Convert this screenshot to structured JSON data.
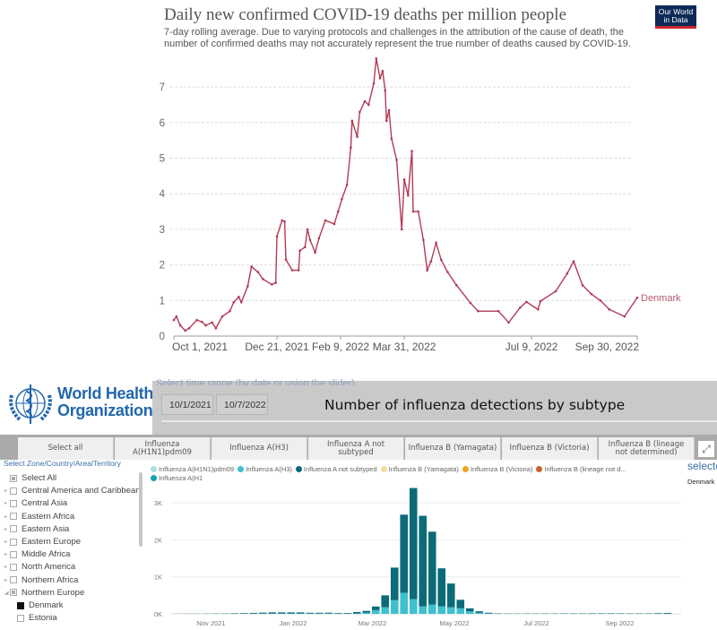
{
  "owid": {
    "title": "Daily new confirmed COVID-19 deaths per million people",
    "subtitle": "7-day rolling average. Due to varying protocols and challenges in the attribution of the cause of death, the number of confirmed deaths may not accurately represent the true number of deaths caused by COVID-19.",
    "logo": "Our World in Data"
  },
  "who": {
    "logo_line1": "World Health",
    "logo_line2": "Organization",
    "range_label": "Select time range (by date or using the slider)",
    "date_start": "10/1/2021",
    "date_end": "10/7/2022",
    "chart_title": "Number of influenza detections by subtype",
    "subtype_buttons": [
      "Select all",
      "Influenza A(H1N1)pdm09",
      "Influenza A(H3)",
      "Influenza A not subtyped",
      "Influenza B (Yamagata)",
      "Influenza B (Victoria)",
      "Influenza B (lineage not determined)"
    ],
    "zone_label": "Select Zone/Country/Area/Territory",
    "zones": [
      {
        "label": "Select All",
        "state": "partial",
        "expander": false
      },
      {
        "label": "Central America and Caribbean",
        "state": "none",
        "expander": true
      },
      {
        "label": "Central Asia",
        "state": "none",
        "expander": true
      },
      {
        "label": "Eastern Africa",
        "state": "none",
        "expander": true
      },
      {
        "label": "Eastern Asia",
        "state": "none",
        "expander": true
      },
      {
        "label": "Eastern Europe",
        "state": "none",
        "expander": true
      },
      {
        "label": "Middle Africa",
        "state": "none",
        "expander": true
      },
      {
        "label": "North America",
        "state": "none",
        "expander": true
      },
      {
        "label": "Northern Africa",
        "state": "none",
        "expander": true
      },
      {
        "label": "Northern Europe",
        "state": "partial",
        "expander": true,
        "expanded": true
      },
      {
        "label": "Denmark",
        "state": "full",
        "child": true
      },
      {
        "label": "Estonia",
        "state": "none",
        "child": true
      }
    ],
    "selected_title": "selected",
    "selected_value": "Denmark",
    "legend": [
      {
        "name": "Influenza A(H1N1)pdm09",
        "color": "#a9dfe3"
      },
      {
        "name": "Influenza A(H3)",
        "color": "#3ec0cf"
      },
      {
        "name": "Influenza A not subtyped",
        "color": "#0b6b78"
      },
      {
        "name": "Influenza B (Yamagata)",
        "color": "#f6dca0"
      },
      {
        "name": "Influenza B (Victoria)",
        "color": "#f0a31c"
      },
      {
        "name": "Influenza B (lineage not d...",
        "color": "#c5642a"
      },
      {
        "name": "Influenza A(H1",
        "color": "#16a3a8"
      }
    ]
  },
  "chart_data": [
    {
      "type": "line",
      "title": "Daily new confirmed COVID-19 deaths per million people",
      "series": [
        {
          "name": "Denmark",
          "color": "#b33a55",
          "points": [
            [
              "2021-10-01",
              0.45
            ],
            [
              "2021-10-03",
              0.55
            ],
            [
              "2021-10-06",
              0.3
            ],
            [
              "2021-10-10",
              0.15
            ],
            [
              "2021-10-13",
              0.22
            ],
            [
              "2021-10-19",
              0.45
            ],
            [
              "2021-10-23",
              0.4
            ],
            [
              "2021-10-26",
              0.3
            ],
            [
              "2021-10-31",
              0.38
            ],
            [
              "2021-11-03",
              0.22
            ],
            [
              "2021-11-08",
              0.55
            ],
            [
              "2021-11-14",
              0.7
            ],
            [
              "2021-11-17",
              0.95
            ],
            [
              "2021-11-21",
              1.1
            ],
            [
              "2021-11-23",
              0.95
            ],
            [
              "2021-11-28",
              1.4
            ],
            [
              "2021-12-01",
              1.95
            ],
            [
              "2021-12-06",
              1.8
            ],
            [
              "2021-12-10",
              1.6
            ],
            [
              "2021-12-17",
              1.45
            ],
            [
              "2021-12-20",
              1.5
            ],
            [
              "2021-12-21",
              2.8
            ],
            [
              "2021-12-25",
              3.25
            ],
            [
              "2021-12-27",
              3.22
            ],
            [
              "2021-12-28",
              2.15
            ],
            [
              "2022-01-02",
              1.85
            ],
            [
              "2022-01-07",
              1.85
            ],
            [
              "2022-01-08",
              2.4
            ],
            [
              "2022-01-12",
              2.5
            ],
            [
              "2022-01-14",
              3.0
            ],
            [
              "2022-01-16",
              2.7
            ],
            [
              "2022-01-20",
              2.35
            ],
            [
              "2022-01-23",
              2.75
            ],
            [
              "2022-01-28",
              3.25
            ],
            [
              "2022-02-04",
              3.15
            ],
            [
              "2022-02-07",
              3.5
            ],
            [
              "2022-02-10",
              3.85
            ],
            [
              "2022-02-14",
              4.25
            ],
            [
              "2022-02-17",
              5.3
            ],
            [
              "2022-02-18",
              6.05
            ],
            [
              "2022-02-22",
              5.6
            ],
            [
              "2022-02-24",
              6.3
            ],
            [
              "2022-02-28",
              6.6
            ],
            [
              "2022-03-03",
              6.5
            ],
            [
              "2022-03-07",
              7.1
            ],
            [
              "2022-03-09",
              7.8
            ],
            [
              "2022-03-12",
              7.25
            ],
            [
              "2022-03-14",
              7.45
            ],
            [
              "2022-03-16",
              6.9
            ],
            [
              "2022-03-17",
              6.05
            ],
            [
              "2022-03-19",
              6.35
            ],
            [
              "2022-03-21",
              5.55
            ],
            [
              "2022-03-25",
              4.95
            ],
            [
              "2022-03-29",
              3.0
            ],
            [
              "2022-03-31",
              4.4
            ],
            [
              "2022-04-03",
              3.95
            ],
            [
              "2022-04-06",
              5.2
            ],
            [
              "2022-04-07",
              3.5
            ],
            [
              "2022-04-11",
              3.5
            ],
            [
              "2022-04-15",
              2.7
            ],
            [
              "2022-04-18",
              1.85
            ],
            [
              "2022-04-21",
              2.1
            ],
            [
              "2022-04-25",
              2.62
            ],
            [
              "2022-04-29",
              2.14
            ],
            [
              "2022-05-04",
              1.8
            ],
            [
              "2022-05-11",
              1.43
            ],
            [
              "2022-05-22",
              0.93
            ],
            [
              "2022-05-28",
              0.7
            ],
            [
              "2022-06-13",
              0.7
            ],
            [
              "2022-06-21",
              0.38
            ],
            [
              "2022-06-30",
              0.8
            ],
            [
              "2022-07-05",
              0.96
            ],
            [
              "2022-07-14",
              0.75
            ],
            [
              "2022-07-16",
              0.98
            ],
            [
              "2022-07-28",
              1.26
            ],
            [
              "2022-08-06",
              1.76
            ],
            [
              "2022-08-11",
              2.1
            ],
            [
              "2022-08-18",
              1.43
            ],
            [
              "2022-08-25",
              1.18
            ],
            [
              "2022-09-01",
              1.0
            ],
            [
              "2022-09-08",
              0.75
            ],
            [
              "2022-09-20",
              0.55
            ],
            [
              "2022-09-30",
              1.08
            ]
          ]
        }
      ],
      "ylim": [
        0,
        7.8
      ],
      "yticks": [
        "0",
        "1",
        "2",
        "3",
        "4",
        "5",
        "6",
        "7"
      ],
      "xlim": [
        "2021-10-01",
        "2022-09-30"
      ],
      "xticks": [
        [
          "2021-10-01",
          "Oct 1, 2021"
        ],
        [
          "2021-12-21",
          "Dec 21, 2021"
        ],
        [
          "2022-02-09",
          "Feb 9, 2022"
        ],
        [
          "2022-03-31",
          "Mar 31, 2022"
        ],
        [
          "2022-07-09",
          "Jul 9, 2022"
        ],
        [
          "2022-09-30",
          "Sep 30, 2022"
        ]
      ],
      "grid": true,
      "series_label": "Denmark"
    },
    {
      "type": "bar",
      "stacked": true,
      "title": "Number of influenza detections by subtype",
      "categories_start": "2021-10-04",
      "interval": "week",
      "series": [
        {
          "name": "Influenza A(H3)",
          "color": "#3ec0cf",
          "values": [
            2,
            2,
            2,
            3,
            3,
            3,
            4,
            5,
            6,
            8,
            10,
            10,
            10,
            10,
            8,
            8,
            10,
            8,
            8,
            10,
            30,
            100,
            180,
            370,
            570,
            400,
            200,
            250,
            200,
            180,
            150,
            70,
            30,
            10,
            5,
            3,
            3,
            3,
            3,
            3,
            3,
            3,
            3,
            3,
            3,
            3,
            3,
            3,
            3,
            3,
            3,
            5,
            5
          ]
        },
        {
          "name": "Influenza A not subtyped",
          "color": "#0b6b78",
          "values": [
            3,
            3,
            4,
            5,
            7,
            8,
            12,
            15,
            20,
            25,
            30,
            30,
            30,
            30,
            22,
            22,
            22,
            15,
            15,
            40,
            50,
            100,
            320,
            880,
            2110,
            3000,
            2450,
            1970,
            1030,
            640,
            230,
            80,
            40,
            20,
            10,
            7,
            7,
            8,
            8,
            8,
            8,
            10,
            10,
            10,
            12,
            12,
            12,
            12,
            10,
            10,
            10,
            15,
            20
          ]
        }
      ],
      "ylim": [
        0,
        3400
      ],
      "yticks": [
        "0K",
        "1K",
        "2K",
        "3K"
      ],
      "xticks": [
        [
          "2021-11-01",
          "Nov 2021"
        ],
        [
          "2022-01-01",
          "Jan 2022"
        ],
        [
          "2022-03-01",
          "Mar 2022"
        ],
        [
          "2022-05-01",
          "May 2022"
        ],
        [
          "2022-07-01",
          "Jul 2022"
        ],
        [
          "2022-09-01",
          "Sep 2022"
        ]
      ],
      "grid": true,
      "legend_position": "top"
    }
  ]
}
